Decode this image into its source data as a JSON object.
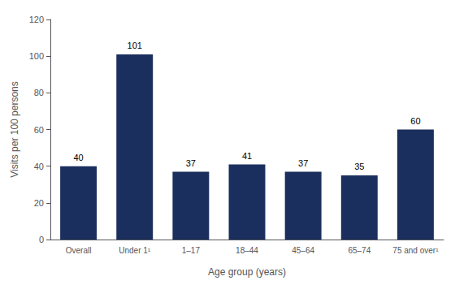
{
  "chart_data": {
    "type": "bar",
    "categories": [
      "Overall",
      "Under 1¹",
      "1–17",
      "18–44",
      "45–64",
      "65–74",
      "75 and over¹"
    ],
    "values": [
      40,
      101,
      37,
      41,
      37,
      35,
      60
    ],
    "color": "#1b2f5e",
    "xlabel": "Age group (years)",
    "ylabel": "Visits per 100 persons",
    "ylim": [
      0,
      120
    ],
    "yticks": [
      0,
      20,
      40,
      60,
      80,
      100,
      120
    ],
    "grid": false,
    "data_labels": true
  }
}
